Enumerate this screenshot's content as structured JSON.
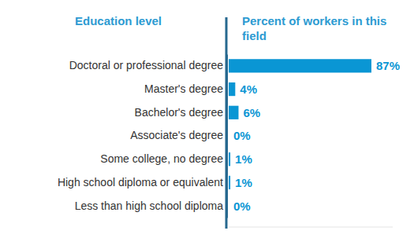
{
  "chart_data": {
    "type": "bar",
    "orientation": "horizontal",
    "y_label": "Education level",
    "x_label": "Percent of workers in this field",
    "categories": [
      "Doctoral or professional degree",
      "Master's degree",
      "Bachelor's degree",
      "Associate's degree",
      "Some college, no degree",
      "High school diploma or equivalent",
      "Less than high school diploma"
    ],
    "values": [
      87,
      4,
      6,
      0,
      1,
      1,
      0
    ],
    "value_labels": [
      "87%",
      "4%",
      "6%",
      "0%",
      "1%",
      "1%",
      "0%"
    ],
    "data_labels": true,
    "color": "#0a96d4",
    "xlim": [
      0,
      100
    ],
    "tick_labels": "y"
  }
}
